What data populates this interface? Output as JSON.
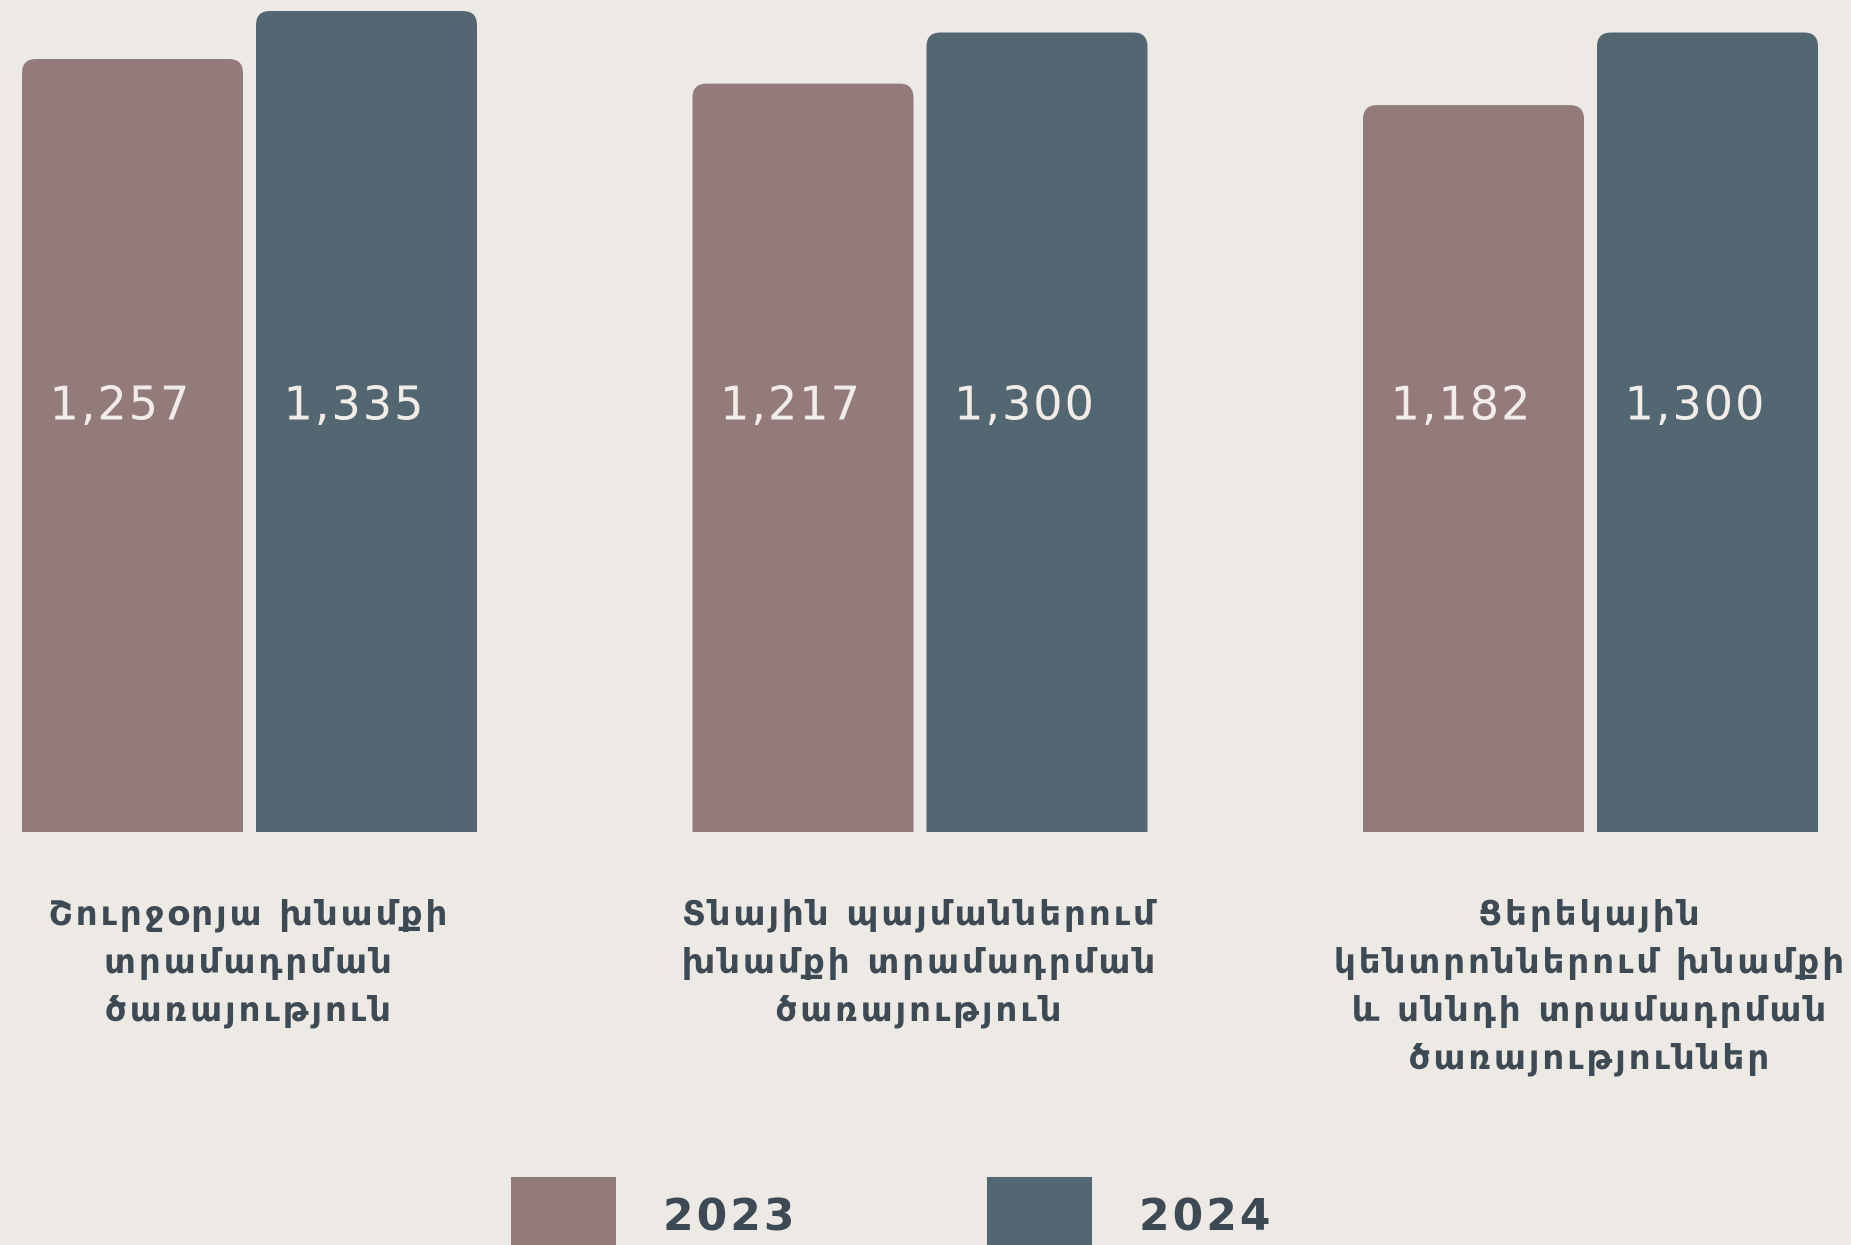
{
  "chart_data": {
    "type": "bar",
    "categories": [
      "Շուրջօրյա խնամքի\nտրամադրման\nծառայություն",
      "Տնային պայմաններում\nխնամքի տրամադրման\nծառայություն",
      "Ցերեկային\nկենտրոններում խնամքի\nև սննդի տրամադրման\nծառայություններ"
    ],
    "series": [
      {
        "name": "2023",
        "color": "#947b7b",
        "values": [
          1257,
          1217,
          1182
        ],
        "value_labels": [
          "1,257",
          "1,217",
          "1,182"
        ]
      },
      {
        "name": "2024",
        "color": "#536772",
        "values": [
          1335,
          1300,
          1300
        ],
        "value_labels": [
          "1,335",
          "1,300",
          "1,300"
        ]
      }
    ]
  }
}
